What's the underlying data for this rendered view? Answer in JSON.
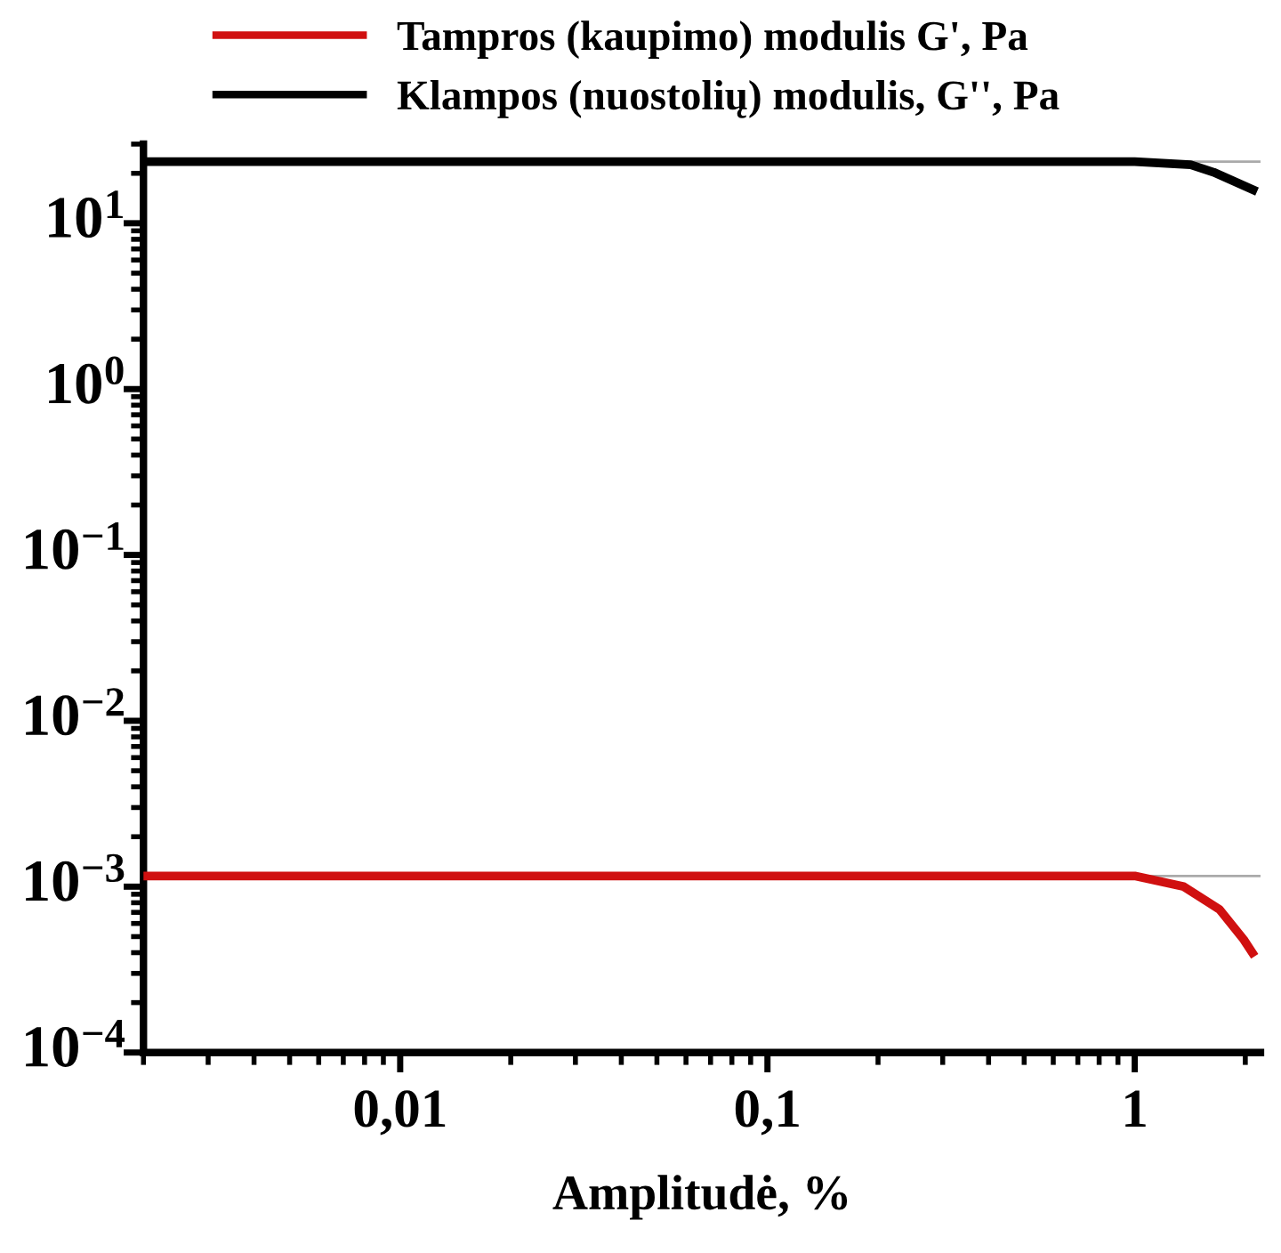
{
  "chart_data": {
    "type": "line",
    "xlabel": "Amplitudė, %",
    "log": "xy",
    "xlim": [
      0.002,
      2.2
    ],
    "ylim": [
      0.0001,
      30
    ],
    "xticks": [
      {
        "value": 0.01,
        "label": "0,01"
      },
      {
        "value": 0.1,
        "label": "0,1"
      },
      1
    ],
    "yticks": [
      {
        "value": 0.0001,
        "label": "10$^{−4}$"
      },
      {
        "value": 0.001,
        "label": "10$^{−3}$"
      },
      {
        "value": 0.01,
        "label": "10$^{−2}$"
      },
      {
        "value": 0.1,
        "label": "10$^{−1}$"
      },
      {
        "value": 1,
        "label": "10$^{0}$"
      },
      {
        "value": 10,
        "label": "10$^{1}$"
      }
    ],
    "grid": false,
    "legend": "top left",
    "marker": "none",
    "line_style": "solid",
    "ref_lines": [
      {
        "axis": "y",
        "value": 23.5,
        "label": null,
        "color": "#aaaaaa"
      },
      {
        "axis": "y",
        "value": 0.00116,
        "label": null,
        "color": "#aaaaaa"
      }
    ],
    "series": [
      {
        "name": "Tampros (kaupimo) modulis G', Pa",
        "color": "#d01010",
        "x": [
          0.002,
          1,
          1.36,
          1.7,
          1.98,
          2.09
        ],
        "values": [
          0.00116,
          0.00116,
          0.001,
          0.00073,
          0.00048,
          0.0004
        ]
      },
      {
        "name": "Klampos (nuostolių) modulis, G'', Pa",
        "color": "#000000",
        "x": [
          0.002,
          1,
          1.42,
          1.64,
          2.1
        ],
        "values": [
          23.5,
          23.5,
          22.5,
          20.3,
          15.9
        ]
      }
    ]
  }
}
